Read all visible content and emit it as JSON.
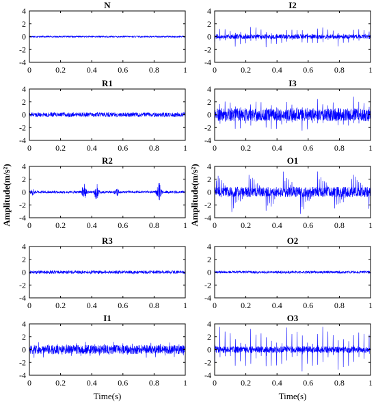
{
  "figure": {
    "ylabel_left": "Amplitude(m/s²)",
    "ylabel_right": "Amplitude(m/s²)",
    "xlabel_left": "Time(s)",
    "xlabel_right": "Time(s)",
    "line_color": "#0000ff"
  },
  "chart_data": [
    {
      "type": "line",
      "title": "N",
      "xlim": [
        0,
        1
      ],
      "ylim": [
        -4,
        4
      ],
      "xticks": [
        0,
        0.2,
        0.4,
        0.6,
        0.8,
        1
      ],
      "yticks": [
        4,
        2,
        0,
        -2,
        -4
      ],
      "amplitude_envelope": 0.12,
      "bursts": [],
      "impulse_peak": 0,
      "impulse_period": 0
    },
    {
      "type": "line",
      "title": "I2",
      "xlim": [
        0,
        1
      ],
      "ylim": [
        -4,
        4
      ],
      "xticks": [
        0,
        0.2,
        0.4,
        0.6,
        0.8,
        1
      ],
      "yticks": [
        4,
        2,
        0,
        -2,
        -4
      ],
      "amplitude_envelope": 0.35,
      "bursts": [],
      "impulse_peak": 1.7,
      "impulse_period": 0.033
    },
    {
      "type": "line",
      "title": "R1",
      "xlim": [
        0,
        1
      ],
      "ylim": [
        -4,
        4
      ],
      "xticks": [
        0,
        0.2,
        0.4,
        0.6,
        0.8,
        1
      ],
      "yticks": [
        4,
        2,
        0,
        -2,
        -4
      ],
      "amplitude_envelope": 0.35,
      "bursts": [],
      "impulse_peak": 0,
      "impulse_period": 0
    },
    {
      "type": "line",
      "title": "I3",
      "xlim": [
        0,
        1
      ],
      "ylim": [
        -4,
        4
      ],
      "xticks": [
        0,
        0.2,
        0.4,
        0.6,
        0.8,
        1
      ],
      "yticks": [
        4,
        2,
        0,
        -2,
        -4
      ],
      "amplitude_envelope": 1.0,
      "bursts": [],
      "impulse_peak": 3.0,
      "impulse_period": 0.033
    },
    {
      "type": "line",
      "title": "R2",
      "xlim": [
        0,
        1
      ],
      "ylim": [
        -4,
        4
      ],
      "xticks": [
        0,
        0.2,
        0.4,
        0.6,
        0.8,
        1
      ],
      "yticks": [
        4,
        2,
        0,
        -2,
        -4
      ],
      "amplitude_envelope": 0.2,
      "bursts": [
        {
          "x": 0.02,
          "amp": 0.4
        },
        {
          "x": 0.35,
          "amp": 1.3
        },
        {
          "x": 0.43,
          "amp": 1.2
        },
        {
          "x": 0.56,
          "amp": 0.5
        },
        {
          "x": 0.83,
          "amp": 1.5
        }
      ],
      "impulse_peak": 0,
      "impulse_period": 0
    },
    {
      "type": "line",
      "title": "O1",
      "xlim": [
        0,
        1
      ],
      "ylim": [
        -4,
        4
      ],
      "xticks": [
        0,
        0.2,
        0.4,
        0.6,
        0.8,
        1
      ],
      "yticks": [
        4,
        2,
        0,
        -2,
        -4
      ],
      "amplitude_envelope": 0.8,
      "bursts": [],
      "impulse_peak": 3.6,
      "impulse_period": 0.011
    },
    {
      "type": "line",
      "title": "R3",
      "xlim": [
        0,
        1
      ],
      "ylim": [
        -4,
        4
      ],
      "xticks": [
        0,
        0.2,
        0.4,
        0.6,
        0.8,
        1
      ],
      "yticks": [
        4,
        2,
        0,
        -2,
        -4
      ],
      "amplitude_envelope": 0.25,
      "bursts": [],
      "impulse_peak": 0,
      "impulse_period": 0
    },
    {
      "type": "line",
      "title": "O2",
      "xlim": [
        0,
        1
      ],
      "ylim": [
        -4,
        4
      ],
      "xticks": [
        0,
        0.2,
        0.4,
        0.6,
        0.8,
        1
      ],
      "yticks": [
        4,
        2,
        0,
        -2,
        -4
      ],
      "amplitude_envelope": 0.2,
      "bursts": [],
      "impulse_peak": 0,
      "impulse_period": 0
    },
    {
      "type": "line",
      "title": "I1",
      "xlim": [
        0,
        1
      ],
      "ylim": [
        -4,
        4
      ],
      "xticks": [
        0,
        0.2,
        0.4,
        0.6,
        0.8,
        1
      ],
      "yticks": [
        4,
        2,
        0,
        -2,
        -4
      ],
      "amplitude_envelope": 0.7,
      "bursts": [],
      "impulse_peak": 1.3,
      "impulse_period": 0.03
    },
    {
      "type": "line",
      "title": "O3",
      "xlim": [
        0,
        1
      ],
      "ylim": [
        -4,
        4
      ],
      "xticks": [
        0,
        0.2,
        0.4,
        0.6,
        0.8,
        1
      ],
      "yticks": [
        4,
        2,
        0,
        -2,
        -4
      ],
      "amplitude_envelope": 0.5,
      "bursts": [],
      "impulse_peak": 4.0,
      "impulse_period": 0.033
    }
  ]
}
